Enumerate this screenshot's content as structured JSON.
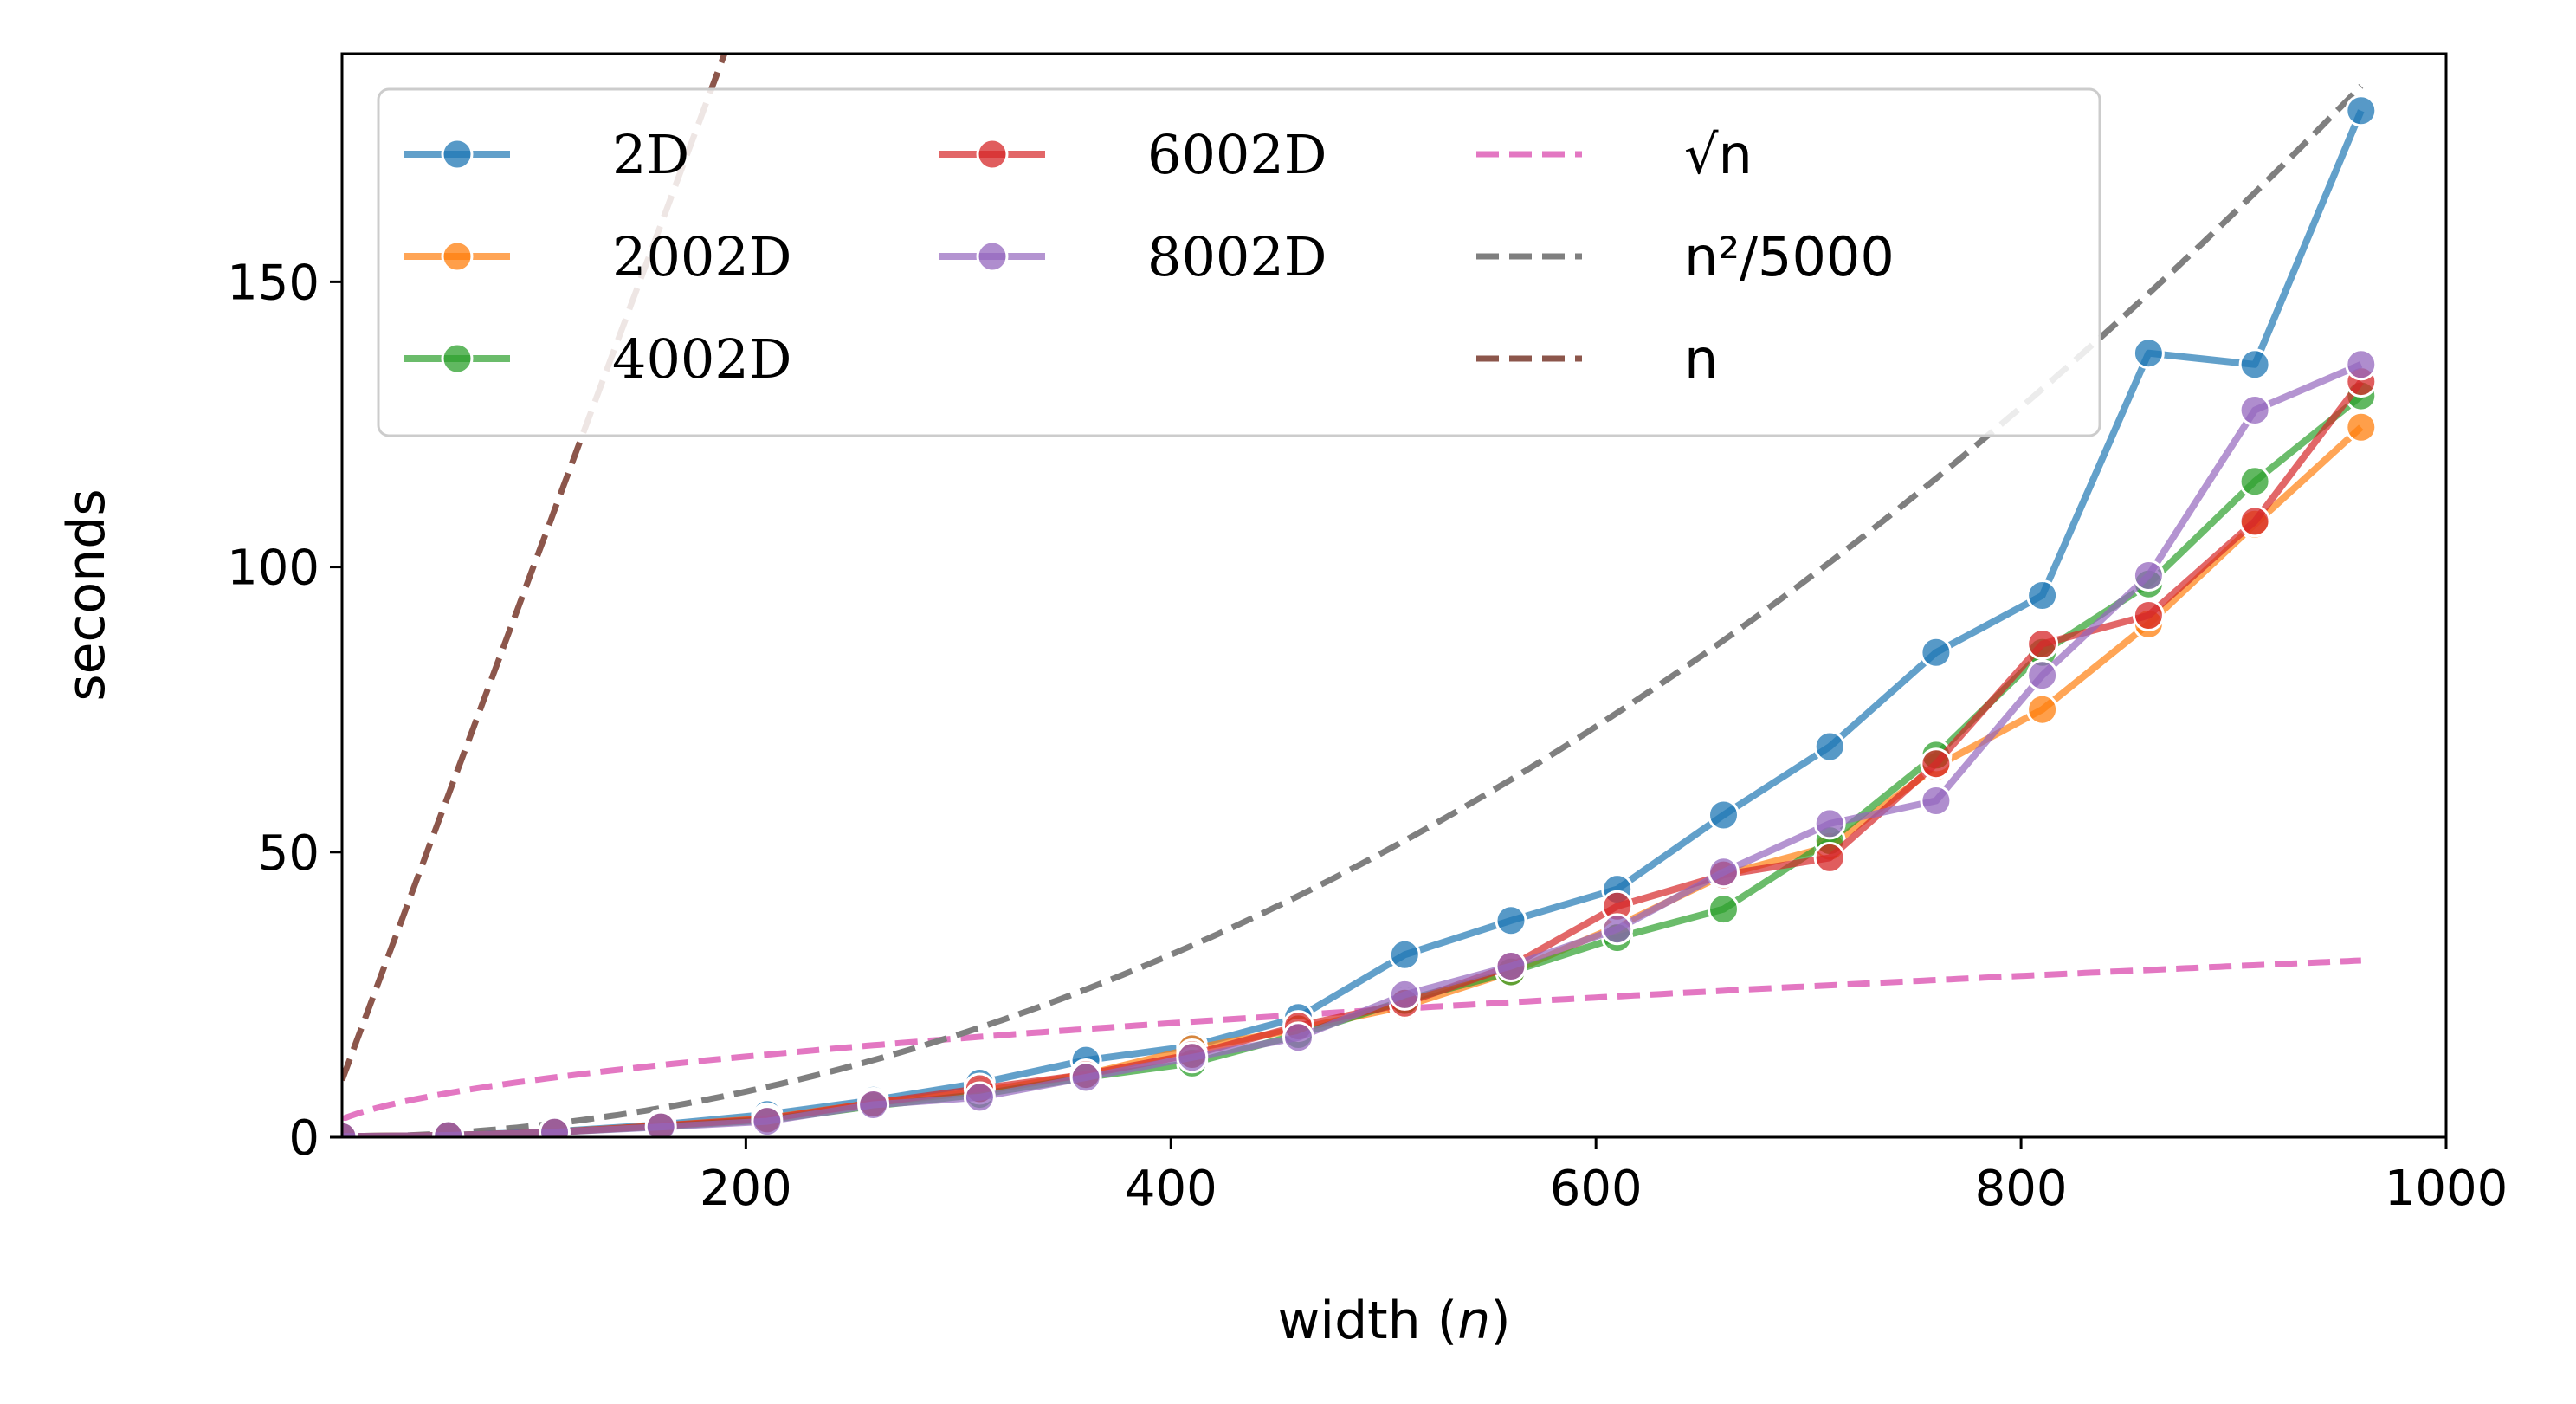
{
  "chart_data": {
    "type": "line",
    "title": "",
    "xlabel": "width (n)",
    "ylabel": "seconds",
    "xlim": [
      10,
      1000
    ],
    "ylim": [
      0,
      190
    ],
    "xticks": [
      200,
      400,
      600,
      800,
      1000
    ],
    "yticks": [
      0,
      50,
      100,
      150
    ],
    "grid": false,
    "legend_position": "upper-left, 3 columns",
    "x": [
      10,
      60,
      110,
      160,
      210,
      260,
      310,
      360,
      410,
      460,
      510,
      560,
      610,
      660,
      710,
      760,
      810,
      860,
      910,
      960
    ],
    "series": [
      {
        "name": "2D",
        "color": "#1f77b4",
        "marker": "circle",
        "values": [
          0.1,
          0.3,
          1.0,
          2.2,
          4.0,
          6.5,
          9.5,
          13.5,
          16.0,
          21.0,
          32.0,
          38.0,
          43.5,
          56.5,
          68.5,
          85.0,
          95.0,
          137.5,
          135.5,
          180.0
        ]
      },
      {
        "name": "2002D",
        "color": "#ff7f0e",
        "marker": "circle",
        "values": [
          0.1,
          0.3,
          0.9,
          2.0,
          3.3,
          6.0,
          8.0,
          11.0,
          15.5,
          19.0,
          23.0,
          29.0,
          37.0,
          46.0,
          51.0,
          65.0,
          75.0,
          90.0,
          107.5,
          124.5
        ]
      },
      {
        "name": "4002D",
        "color": "#2ca02c",
        "marker": "circle",
        "values": [
          0.1,
          0.3,
          0.9,
          1.9,
          3.0,
          5.5,
          7.5,
          10.5,
          13.0,
          18.0,
          24.0,
          29.0,
          35.0,
          40.0,
          52.0,
          67.0,
          85.0,
          97.0,
          115.0,
          130.0
        ]
      },
      {
        "name": "6002D",
        "color": "#d62728",
        "marker": "circle",
        "values": [
          0.1,
          0.3,
          0.9,
          2.0,
          3.2,
          6.0,
          8.5,
          11.0,
          14.5,
          19.5,
          23.5,
          30.0,
          40.5,
          46.0,
          49.0,
          65.5,
          86.5,
          91.5,
          108.0,
          132.5
        ]
      },
      {
        "name": "8002D",
        "color": "#9467bd",
        "marker": "circle",
        "values": [
          0.1,
          0.3,
          0.9,
          1.8,
          2.8,
          5.7,
          7.0,
          10.5,
          14.0,
          17.5,
          25.0,
          30.0,
          36.5,
          46.5,
          55.0,
          59.0,
          81.0,
          98.5,
          127.5,
          135.5
        ]
      }
    ],
    "reference_curves": [
      {
        "name": "√n",
        "formula": "sqrt(n)",
        "color": "#e377c2",
        "style": "dashed",
        "x_range": [
          10,
          960
        ]
      },
      {
        "name": "n²/5000",
        "formula": "n^2/5000",
        "color": "#7f7f7f",
        "style": "dashed",
        "x_range": [
          10,
          960
        ]
      },
      {
        "name": "n",
        "formula": "n",
        "color": "#8c564b",
        "style": "dashed",
        "x_range": [
          10,
          960
        ]
      }
    ]
  }
}
